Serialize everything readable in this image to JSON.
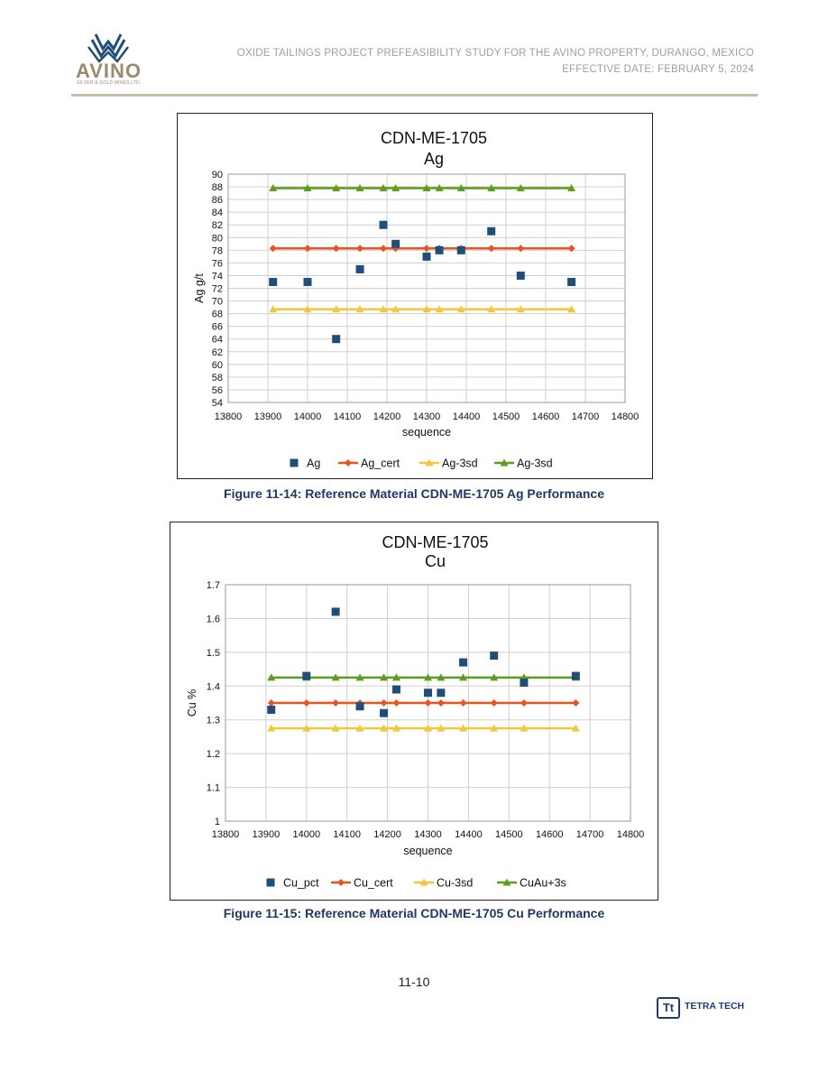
{
  "header": {
    "logo_text": "AVINO",
    "logo_subtext": "SILVER & GOLD MINES LTD.",
    "line1": "OXIDE TAILINGS PROJECT PREFEASIBILITY STUDY FOR THE AVINO PROPERTY, DURANGO, MEXICO",
    "line2": "EFFECTIVE DATE: FEBRUARY 5, 2024"
  },
  "colors": {
    "sample": "#1f4e79",
    "cert": "#e8531f",
    "lower": "#f2c73c",
    "upper": "#5e9b1e",
    "rule": "#c8bca2",
    "caption": "#1f3864"
  },
  "chart_data": [
    {
      "type": "scatter",
      "title": "CDN-ME-1705",
      "subtitle": "Ag",
      "xlabel": "sequence",
      "ylabel": "Ag g/t",
      "xlim": [
        13800,
        14800
      ],
      "xticks": [
        13800,
        13900,
        14000,
        14100,
        14200,
        14300,
        14400,
        14500,
        14600,
        14700,
        14800
      ],
      "ylim": [
        54,
        90
      ],
      "yticks": [
        54,
        56,
        58,
        60,
        62,
        64,
        66,
        68,
        70,
        72,
        74,
        76,
        78,
        80,
        82,
        84,
        86,
        88,
        90
      ],
      "grid": true,
      "legend_position": "bottom",
      "x": [
        13913,
        14000,
        14072,
        14132,
        14191,
        14222,
        14300,
        14332,
        14387,
        14463,
        14537,
        14665
      ],
      "series": [
        {
          "name": "Ag",
          "marker": "square",
          "line": false,
          "values": [
            73,
            73,
            64,
            75,
            82,
            79,
            77,
            78,
            78,
            81,
            74,
            73
          ]
        },
        {
          "name": "Ag_cert",
          "marker": "diamond",
          "line": true,
          "values": [
            78.3,
            78.3,
            78.3,
            78.3,
            78.3,
            78.3,
            78.3,
            78.3,
            78.3,
            78.3,
            78.3,
            78.3
          ]
        },
        {
          "name": "Ag-3sd",
          "marker": "triangle",
          "line": true,
          "values": [
            68.7,
            68.7,
            68.7,
            68.7,
            68.7,
            68.7,
            68.7,
            68.7,
            68.7,
            68.7,
            68.7,
            68.7
          ]
        },
        {
          "name": "Ag-3sd",
          "marker": "triangle",
          "line": true,
          "values": [
            87.8,
            87.8,
            87.8,
            87.8,
            87.8,
            87.8,
            87.8,
            87.8,
            87.8,
            87.8,
            87.8,
            87.8
          ]
        }
      ],
      "caption": "Figure 11-14: Reference Material CDN-ME-1705 Ag Performance"
    },
    {
      "type": "scatter",
      "title": "CDN-ME-1705",
      "subtitle": "Cu",
      "xlabel": "sequence",
      "ylabel": "Cu %",
      "xlim": [
        13800,
        14800
      ],
      "xticks": [
        13800,
        13900,
        14000,
        14100,
        14200,
        14300,
        14400,
        14500,
        14600,
        14700,
        14800
      ],
      "ylim": [
        1,
        1.7
      ],
      "yticks": [
        1,
        1.1,
        1.2,
        1.3,
        1.4,
        1.5,
        1.6,
        1.7
      ],
      "grid": true,
      "legend_position": "bottom",
      "x": [
        13913,
        14000,
        14072,
        14132,
        14191,
        14222,
        14300,
        14332,
        14387,
        14463,
        14537,
        14665
      ],
      "series": [
        {
          "name": "Cu_pct",
          "marker": "square",
          "line": false,
          "values": [
            1.33,
            1.43,
            1.62,
            1.34,
            1.32,
            1.39,
            1.38,
            1.38,
            1.47,
            1.49,
            1.41,
            1.43
          ]
        },
        {
          "name": "Cu_cert",
          "marker": "diamond",
          "line": true,
          "values": [
            1.35,
            1.35,
            1.35,
            1.35,
            1.35,
            1.35,
            1.35,
            1.35,
            1.35,
            1.35,
            1.35,
            1.35
          ]
        },
        {
          "name": "Cu-3sd",
          "marker": "triangle",
          "line": true,
          "values": [
            1.275,
            1.275,
            1.275,
            1.275,
            1.275,
            1.275,
            1.275,
            1.275,
            1.275,
            1.275,
            1.275,
            1.275
          ]
        },
        {
          "name": "CuAu+3s",
          "marker": "triangle",
          "line": true,
          "values": [
            1.425,
            1.425,
            1.425,
            1.425,
            1.425,
            1.425,
            1.425,
            1.425,
            1.425,
            1.425,
            1.425,
            1.425
          ]
        }
      ],
      "caption": "Figure 11-15: Reference Material CDN-ME-1705 Cu Performance"
    }
  ],
  "footer": {
    "page_number": "11-10",
    "brand_mark": "Tt",
    "brand_text": "TETRA TECH"
  }
}
